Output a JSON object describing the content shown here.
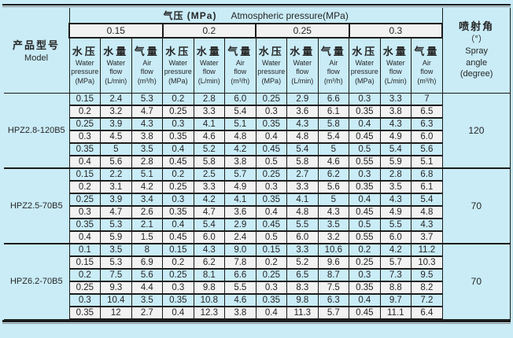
{
  "colors": {
    "page_background": "#c9ecf7",
    "stripe_background": "#f2f2f2",
    "border": "#1c1c1c",
    "text": "#262626"
  },
  "header": {
    "model_zh": "产品型号",
    "model_en": "Model",
    "pressure_title_zh": "气压 (MPa)",
    "pressure_title_en": "Atmospheric pressure(MPa)",
    "pressure_groups": [
      "0.15",
      "0.2",
      "0.25",
      "0.3"
    ],
    "column_headers": [
      {
        "zh": "水压",
        "en": "Water pressure",
        "unit": "(MPa)"
      },
      {
        "zh": "水量",
        "en": "Water flow",
        "unit": "(L/min)"
      },
      {
        "zh": "气量",
        "en": "Air flow",
        "unit": "(m³/h)"
      }
    ],
    "spray_lines": [
      "喷射角",
      "（°）",
      "Spray",
      "angle",
      "(degree)"
    ]
  },
  "models": [
    {
      "name": "HPZ2.8-120B5",
      "spray_angle": "120",
      "rows": [
        [
          "0.15",
          "2.4",
          "5.3",
          "0.2",
          "2.8",
          "6.0",
          "0.25",
          "2.9",
          "6.6",
          "0.3",
          "3.3",
          "7"
        ],
        [
          "0.2",
          "3.2",
          "4.7",
          "0.25",
          "3.3",
          "5.4",
          "0.3",
          "3.6",
          "6.1",
          "0.35",
          "3.8",
          "6.5"
        ],
        [
          "0.25",
          "3.9",
          "4.3",
          "0.3",
          "4.1",
          "5.1",
          "0.35",
          "4.3",
          "5.8",
          "0.4",
          "4.3",
          "6.3"
        ],
        [
          "0.3",
          "4.5",
          "3.8",
          "0.35",
          "4.6",
          "4.8",
          "0.4",
          "4.8",
          "5.4",
          "0.45",
          "4.9",
          "6.0"
        ],
        [
          "0.35",
          "5",
          "3.5",
          "0.4",
          "5.2",
          "4.2",
          "0.45",
          "5.4",
          "5",
          "0.5",
          "5.4",
          "5.6"
        ],
        [
          "0.4",
          "5.6",
          "2.8",
          "0.45",
          "5.8",
          "3.8",
          "0.5",
          "5.8",
          "4.6",
          "0.55",
          "5.9",
          "5.1"
        ]
      ]
    },
    {
      "name": "HPZ2.5-70B5",
      "spray_angle": "70",
      "rows": [
        [
          "0.15",
          "2.2",
          "5.1",
          "0.2",
          "2.5",
          "5.7",
          "0.25",
          "2.7",
          "6.2",
          "0.3",
          "2.8",
          "6.8"
        ],
        [
          "0.2",
          "3.1",
          "4.2",
          "0.25",
          "3.3",
          "4.9",
          "0.3",
          "3.3",
          "5.6",
          "0.35",
          "3.5",
          "6.1"
        ],
        [
          "0.25",
          "3.9",
          "3.4",
          "0.3",
          "4.2",
          "4.1",
          "0.35",
          "4.1",
          "5",
          "0.4",
          "4.3",
          "5.4"
        ],
        [
          "0.3",
          "4.7",
          "2.6",
          "0.35",
          "4.7",
          "3.6",
          "0.4",
          "4.8",
          "4.3",
          "0.45",
          "4.9",
          "4.8"
        ],
        [
          "0.35",
          "5.3",
          "2.1",
          "0.4",
          "5.4",
          "2.9",
          "0.45",
          "5.5",
          "3.5",
          "0.5",
          "5.5",
          "4.3"
        ],
        [
          "0.4",
          "5.9",
          "1.5",
          "0.45",
          "6.0",
          "2.4",
          "0.5",
          "6.0",
          "3.2",
          "0.55",
          "6.0",
          "3.7"
        ]
      ]
    },
    {
      "name": "HPZ6.2-70B5",
      "spray_angle": "70",
      "rows": [
        [
          "0.1",
          "3.5",
          "8",
          "0.15",
          "4.3",
          "9.0",
          "0.15",
          "3.3",
          "10.6",
          "0.2",
          "4.2",
          "11.2"
        ],
        [
          "0.15",
          "5.3",
          "6.9",
          "0.2",
          "6.2",
          "7.8",
          "0.2",
          "5.2",
          "9.6",
          "0.25",
          "5.7",
          "10.3"
        ],
        [
          "0.2",
          "7.5",
          "5.6",
          "0.25",
          "8.1",
          "6.6",
          "0.25",
          "6.5",
          "8.7",
          "0.3",
          "7.3",
          "9.5"
        ],
        [
          "0.25",
          "9.3",
          "4.4",
          "0.3",
          "9.8",
          "5.5",
          "0.3",
          "8.3",
          "7.5",
          "0.35",
          "8.8",
          "8.2"
        ],
        [
          "0.3",
          "10.4",
          "3.5",
          "0.35",
          "10.8",
          "4.6",
          "0.35",
          "9.8",
          "6.3",
          "0.4",
          "9.7",
          "7.2"
        ],
        [
          "0.35",
          "12",
          "2.7",
          "0.4",
          "12.3",
          "3.8",
          "0.4",
          "11.3",
          "5.7",
          "0.45",
          "11.1",
          "6.4"
        ]
      ]
    }
  ]
}
